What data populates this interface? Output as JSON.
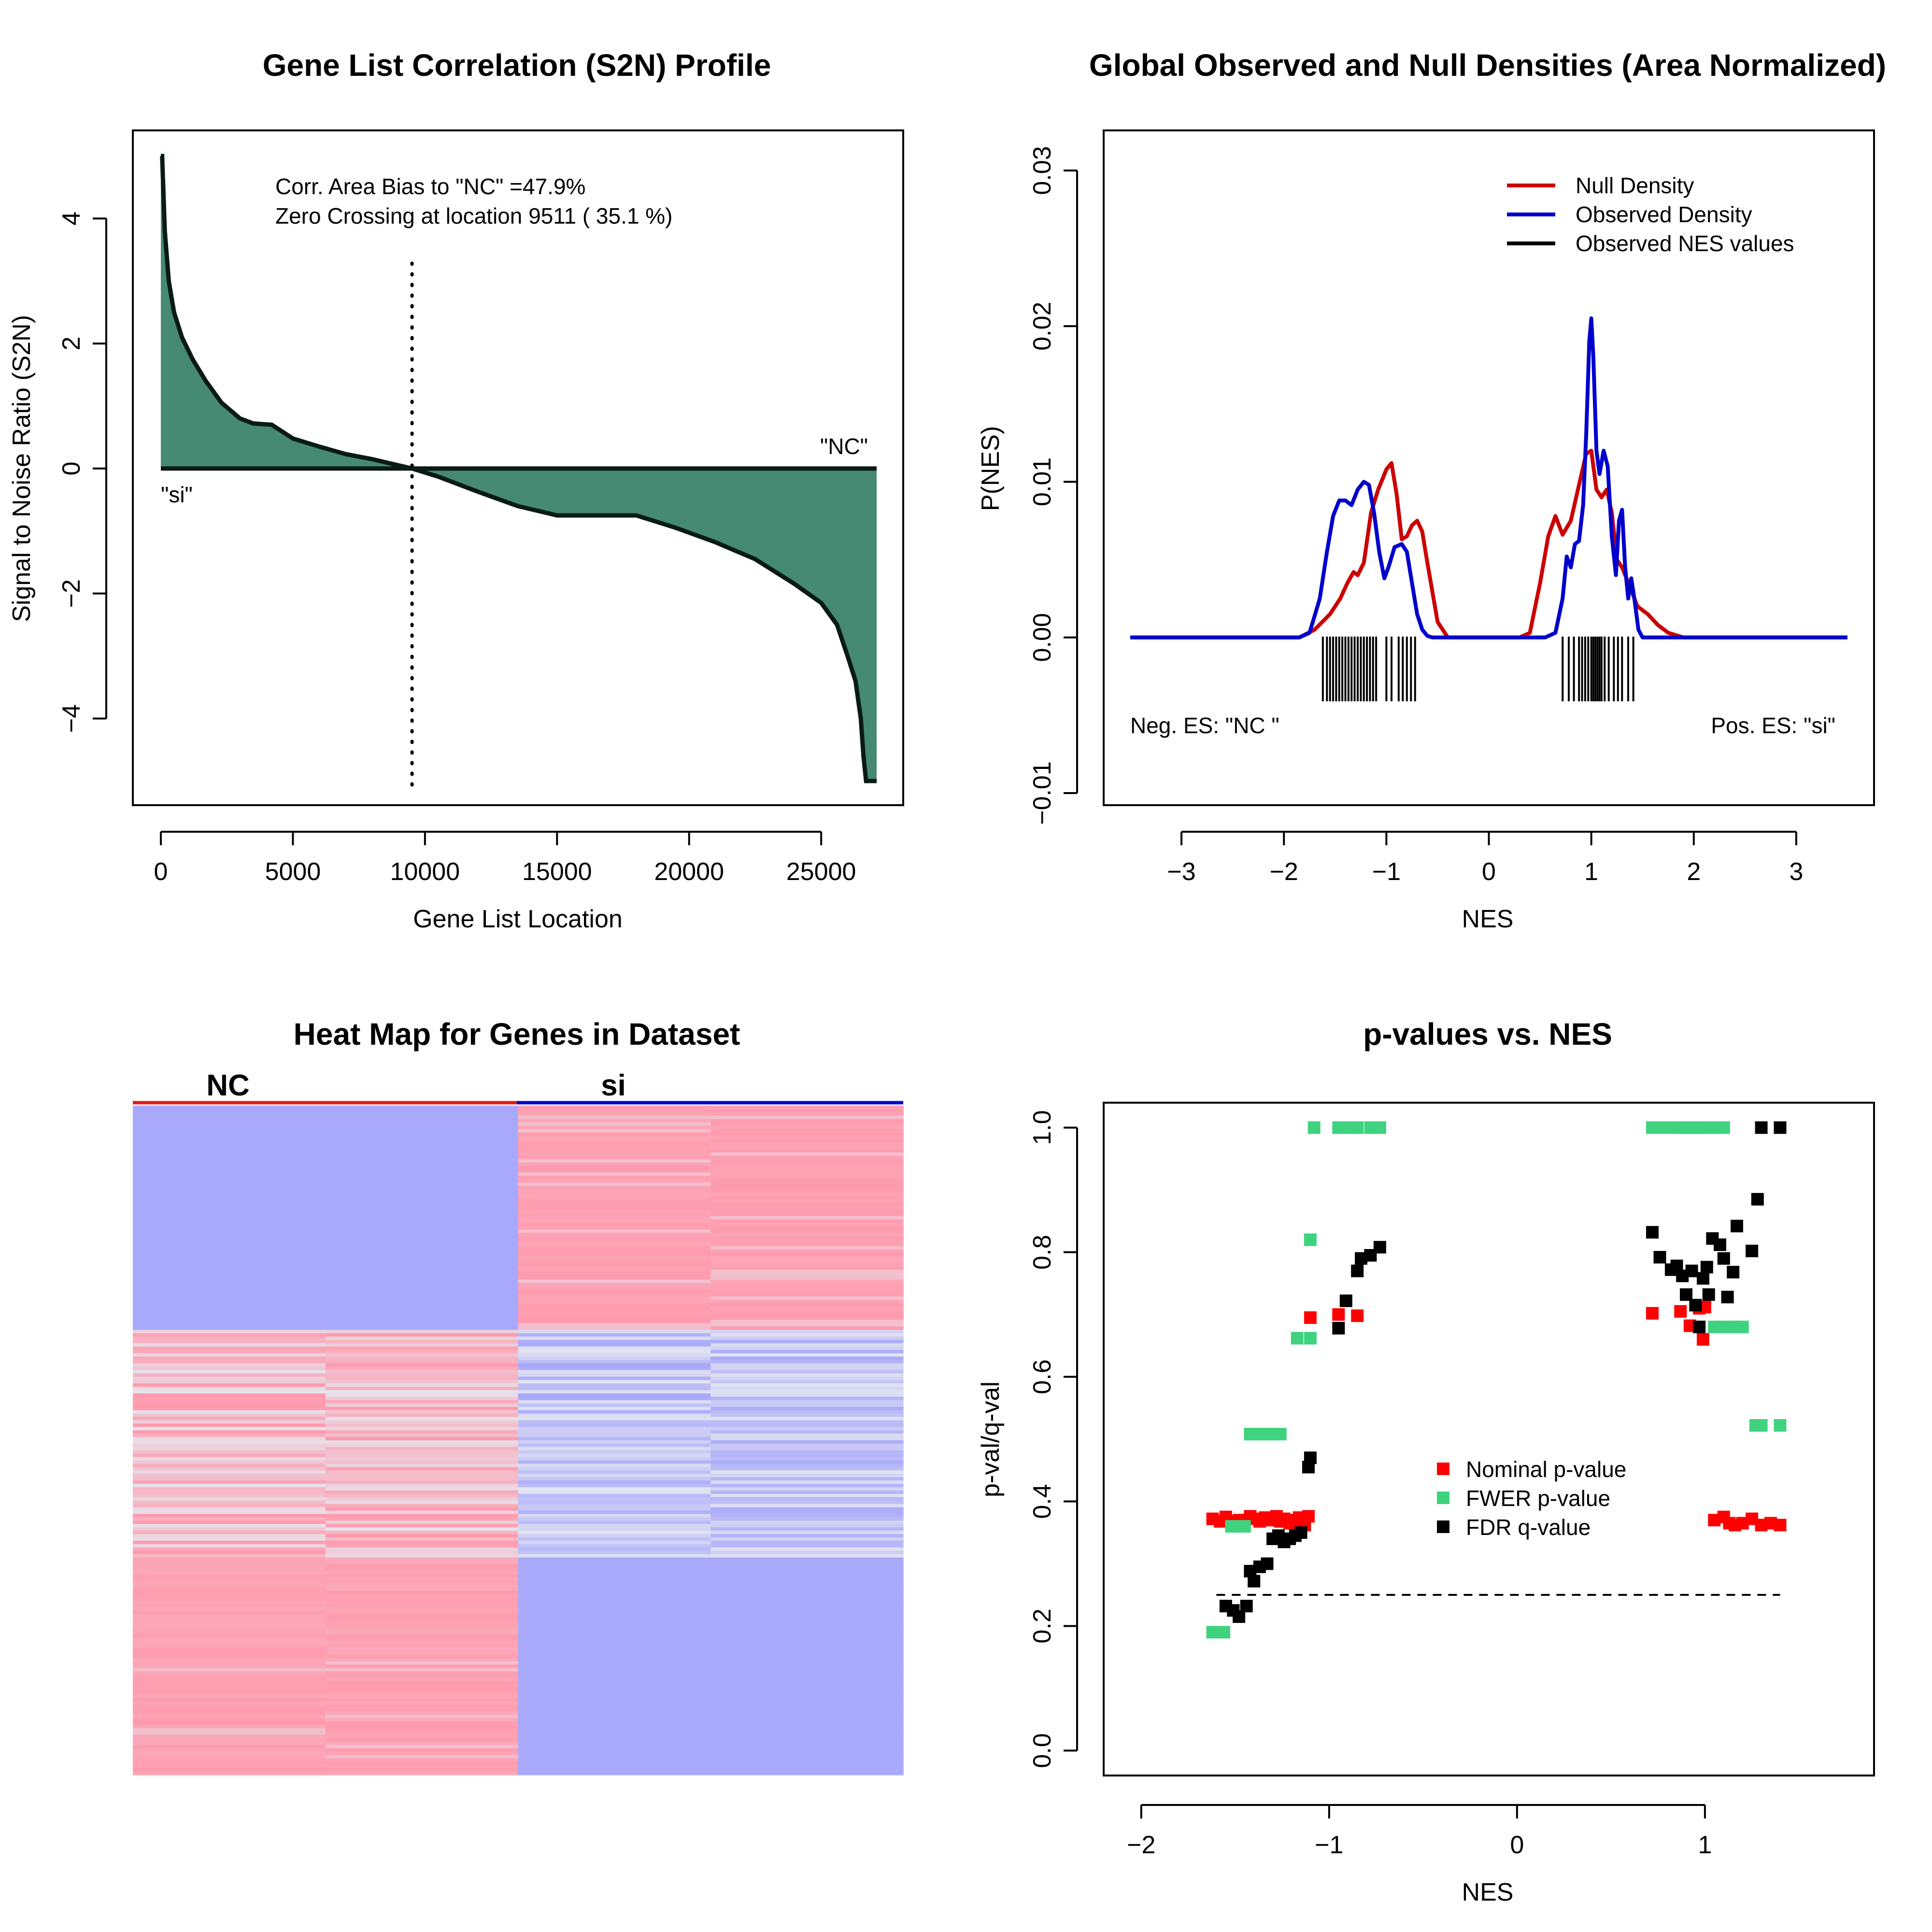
{
  "chart_data": [
    {
      "type": "area",
      "title": "Gene List Correlation (S2N) Profile",
      "xlabel": "Gene List Location",
      "ylabel": "Signal to Noise Ratio (S2N)",
      "xlim": [
        0,
        27100
      ],
      "ylim": [
        -5,
        5
      ],
      "xticks": [
        0,
        5000,
        10000,
        15000,
        20000,
        25000
      ],
      "xtick_labels": [
        "0",
        "5000",
        "10000",
        "15000",
        "20000",
        "25000"
      ],
      "yticks": [
        -4,
        -2,
        0,
        2,
        4
      ],
      "ytick_labels": [
        "−4",
        "−2",
        "0",
        "2",
        "4"
      ],
      "grid": false,
      "fill_color": "#468a73",
      "annotations": [
        "Corr. Area Bias to \"NC\" =47.9%",
        "Zero Crossing at location  9511  ( 35.1  %)"
      ],
      "left_label": "\"si\"",
      "right_label": "\"NC\"",
      "zero_crossing": 9511,
      "x": [
        0,
        50,
        150,
        300,
        500,
        800,
        1200,
        1700,
        2300,
        3000,
        3500,
        4200,
        5000,
        6000,
        7000,
        8000,
        9000,
        9511,
        10500,
        12000,
        13500,
        15000,
        16500,
        18000,
        19500,
        21000,
        22500,
        24000,
        25000,
        25600,
        26000,
        26300,
        26500,
        26600,
        26700,
        26800,
        27100
      ],
      "values": [
        5.0,
        5.0,
        3.8,
        3.0,
        2.5,
        2.1,
        1.75,
        1.4,
        1.05,
        0.8,
        0.72,
        0.7,
        0.48,
        0.35,
        0.23,
        0.15,
        0.05,
        0.0,
        -0.13,
        -0.37,
        -0.6,
        -0.75,
        -0.75,
        -0.75,
        -0.95,
        -1.18,
        -1.45,
        -1.85,
        -2.15,
        -2.5,
        -3.0,
        -3.4,
        -4.0,
        -4.6,
        -5.0,
        -5.0,
        -5.0
      ]
    },
    {
      "type": "line",
      "title": "Global Observed and Null Densities (Area Normalized)",
      "xlabel": "NES",
      "ylabel": "P(NES)",
      "xlim": [
        -3.5,
        3.5
      ],
      "ylim": [
        -0.01,
        0.03
      ],
      "xticks": [
        -3,
        -2,
        -1,
        0,
        1,
        2,
        3
      ],
      "xtick_labels": [
        "−3",
        "−2",
        "−1",
        "0",
        "1",
        "2",
        "3"
      ],
      "yticks": [
        -0.01,
        0.0,
        0.01,
        0.02,
        0.03
      ],
      "ytick_labels": [
        "−0.01",
        "0.00",
        "0.01",
        "0.02",
        "0.03"
      ],
      "grid": false,
      "legend_position": "top-right",
      "legend": [
        "Null Density",
        "Observed Density",
        "Observed NES values"
      ],
      "neg_label": "Neg. ES: \"NC \"",
      "pos_label": "Pos. ES: \"si\"",
      "series": [
        {
          "name": "Null Density",
          "color": "#cc0000",
          "x": [
            -3.5,
            -1.85,
            -1.7,
            -1.55,
            -1.45,
            -1.38,
            -1.32,
            -1.28,
            -1.22,
            -1.15,
            -1.08,
            -1.0,
            -0.95,
            -0.9,
            -0.85,
            -0.8,
            -0.75,
            -0.7,
            -0.65,
            -0.6,
            -0.5,
            -0.4,
            0.3,
            0.4,
            0.5,
            0.58,
            0.65,
            0.72,
            0.8,
            0.88,
            0.95,
            1.0,
            1.05,
            1.1,
            1.15,
            1.2,
            1.25,
            1.3,
            1.38,
            1.45,
            1.55,
            1.65,
            1.75,
            1.9,
            3.5
          ],
          "y": [
            0.0,
            0.0,
            0.0005,
            0.0015,
            0.0025,
            0.0035,
            0.0042,
            0.004,
            0.0048,
            0.008,
            0.0095,
            0.0108,
            0.0112,
            0.0092,
            0.0063,
            0.0065,
            0.0072,
            0.0075,
            0.0068,
            0.0048,
            0.001,
            0.0,
            0.0,
            0.0003,
            0.0035,
            0.0065,
            0.0078,
            0.0066,
            0.0075,
            0.0098,
            0.0118,
            0.012,
            0.0095,
            0.009,
            0.0095,
            0.008,
            0.005,
            0.0045,
            0.0032,
            0.002,
            0.0015,
            0.0008,
            0.0003,
            0.0,
            0.0
          ]
        },
        {
          "name": "Observed Density",
          "color": "#0000cc",
          "x": [
            -3.5,
            -1.85,
            -1.75,
            -1.65,
            -1.58,
            -1.52,
            -1.46,
            -1.4,
            -1.34,
            -1.28,
            -1.22,
            -1.17,
            -1.12,
            -1.07,
            -1.02,
            -0.98,
            -0.92,
            -0.85,
            -0.8,
            -0.75,
            -0.7,
            -0.65,
            -0.6,
            -0.55,
            -0.45,
            0.55,
            0.65,
            0.72,
            0.76,
            0.8,
            0.84,
            0.88,
            0.92,
            0.95,
            0.98,
            1.0,
            1.02,
            1.05,
            1.08,
            1.12,
            1.16,
            1.2,
            1.24,
            1.27,
            1.3,
            1.33,
            1.36,
            1.39,
            1.42,
            1.46,
            1.5,
            3.5
          ],
          "y": [
            0.0,
            0.0,
            0.0003,
            0.0025,
            0.0055,
            0.0078,
            0.0088,
            0.0088,
            0.0085,
            0.0095,
            0.01,
            0.0098,
            0.008,
            0.0055,
            0.0038,
            0.0045,
            0.0058,
            0.006,
            0.0055,
            0.0035,
            0.0015,
            0.0005,
            0.0001,
            0.0,
            0.0,
            0.0,
            0.0003,
            0.0025,
            0.0052,
            0.0045,
            0.006,
            0.0062,
            0.0085,
            0.013,
            0.019,
            0.0205,
            0.018,
            0.012,
            0.0105,
            0.012,
            0.011,
            0.0065,
            0.004,
            0.0075,
            0.0082,
            0.0045,
            0.0025,
            0.0038,
            0.0025,
            0.0005,
            0.0,
            0.0
          ]
        }
      ],
      "nes_ticks": [
        -1.62,
        -1.58,
        -1.55,
        -1.52,
        -1.49,
        -1.46,
        -1.43,
        -1.4,
        -1.37,
        -1.34,
        -1.31,
        -1.28,
        -1.25,
        -1.22,
        -1.19,
        -1.16,
        -1.13,
        -1.1,
        -1.0,
        -0.95,
        -0.88,
        -0.84,
        -0.8,
        -0.76,
        -0.72,
        0.72,
        0.78,
        0.83,
        0.88,
        0.91,
        0.94,
        0.97,
        1.0,
        1.02,
        1.04,
        1.06,
        1.08,
        1.1,
        1.13,
        1.17,
        1.22,
        1.26,
        1.3,
        1.36,
        1.41
      ]
    },
    {
      "type": "heatmap",
      "title": "Heat Map for Genes in Dataset",
      "column_groups": [
        "NC",
        "si"
      ],
      "columns": 4,
      "group_colors": [
        "#e31a1c",
        "#0000cc"
      ],
      "palette": {
        "high": "#ff9aad",
        "low": "#a8a9fb",
        "mid": "#e5e6ef"
      }
    },
    {
      "type": "scatter",
      "title": "p-values vs. NES",
      "xlabel": "NES",
      "ylabel": "p-val/q-val",
      "xlim": [
        -2.2,
        1.9
      ],
      "ylim": [
        -0.04,
        1.04
      ],
      "xticks": [
        -2,
        -1,
        0,
        1
      ],
      "xtick_labels": [
        "−2",
        "−1",
        "0",
        "1"
      ],
      "yticks": [
        0.0,
        0.2,
        0.4,
        0.6,
        0.8,
        1.0
      ],
      "ytick_labels": [
        "0.0",
        "0.2",
        "0.4",
        "0.6",
        "0.8",
        "1.0"
      ],
      "grid": false,
      "threshold": 0.25,
      "threshold_range": [
        -1.6,
        1.4
      ],
      "legend_position": "center-right",
      "series": [
        {
          "name": "Nominal p-value",
          "color": "#ff0000",
          "points": [
            [
              -1.62,
              0.372
            ],
            [
              -1.58,
              0.368
            ],
            [
              -1.55,
              0.375
            ],
            [
              -1.52,
              0.368
            ],
            [
              -1.48,
              0.37
            ],
            [
              -1.45,
              0.368
            ],
            [
              -1.42,
              0.376
            ],
            [
              -1.4,
              0.372
            ],
            [
              -1.37,
              0.368
            ],
            [
              -1.34,
              0.374
            ],
            [
              -1.31,
              0.37
            ],
            [
              -1.28,
              0.376
            ],
            [
              -1.26,
              0.368
            ],
            [
              -1.24,
              0.372
            ],
            [
              -1.21,
              0.365
            ],
            [
              -1.19,
              0.37
            ],
            [
              -1.16,
              0.374
            ],
            [
              -1.13,
              0.362
            ],
            [
              -1.11,
              0.376
            ],
            [
              -1.1,
              0.695
            ],
            [
              -0.95,
              0.7
            ],
            [
              -0.85,
              0.698
            ],
            [
              0.72,
              0.702
            ],
            [
              0.87,
              0.705
            ],
            [
              0.92,
              0.682
            ],
            [
              0.97,
              0.71
            ],
            [
              1.0,
              0.712
            ],
            [
              0.99,
              0.66
            ],
            [
              1.05,
              0.37
            ],
            [
              1.1,
              0.375
            ],
            [
              1.13,
              0.365
            ],
            [
              1.16,
              0.362
            ],
            [
              1.2,
              0.365
            ],
            [
              1.25,
              0.372
            ],
            [
              1.3,
              0.362
            ],
            [
              1.35,
              0.365
            ],
            [
              1.4,
              0.362
            ]
          ]
        },
        {
          "name": "FWER p-value",
          "color": "#3fd27f",
          "points": [
            [
              -1.62,
              0.19
            ],
            [
              -1.56,
              0.19
            ],
            [
              -1.52,
              0.36
            ],
            [
              -1.48,
              0.36
            ],
            [
              -1.45,
              0.36
            ],
            [
              -1.42,
              0.508
            ],
            [
              -1.38,
              0.508
            ],
            [
              -1.34,
              0.508
            ],
            [
              -1.3,
              0.508
            ],
            [
              -1.26,
              0.508
            ],
            [
              -1.17,
              0.662
            ],
            [
              -1.1,
              0.662
            ],
            [
              -1.1,
              0.82
            ],
            [
              -1.08,
              1.0
            ],
            [
              -0.95,
              1.0
            ],
            [
              -0.9,
              1.0
            ],
            [
              -0.85,
              1.0
            ],
            [
              -0.78,
              1.0
            ],
            [
              -0.73,
              1.0
            ],
            [
              0.72,
              1.0
            ],
            [
              0.78,
              1.0
            ],
            [
              0.84,
              1.0
            ],
            [
              0.88,
              1.0
            ],
            [
              0.92,
              1.0
            ],
            [
              0.96,
              1.0
            ],
            [
              1.0,
              1.0
            ],
            [
              1.05,
              1.0
            ],
            [
              1.1,
              1.0
            ],
            [
              1.05,
              0.68
            ],
            [
              1.1,
              0.68
            ],
            [
              1.15,
              0.68
            ],
            [
              1.2,
              0.68
            ],
            [
              1.27,
              0.522
            ],
            [
              1.3,
              0.522
            ],
            [
              1.4,
              0.522
            ]
          ]
        },
        {
          "name": "FDR q-value",
          "color": "#000000",
          "points": [
            [
              -1.55,
              0.232
            ],
            [
              -1.51,
              0.225
            ],
            [
              -1.48,
              0.215
            ],
            [
              -1.44,
              0.232
            ],
            [
              -1.42,
              0.288
            ],
            [
              -1.4,
              0.272
            ],
            [
              -1.37,
              0.295
            ],
            [
              -1.33,
              0.3
            ],
            [
              -1.3,
              0.34
            ],
            [
              -1.27,
              0.345
            ],
            [
              -1.24,
              0.335
            ],
            [
              -1.21,
              0.34
            ],
            [
              -1.18,
              0.345
            ],
            [
              -1.15,
              0.35
            ],
            [
              -1.11,
              0.455
            ],
            [
              -1.1,
              0.47
            ],
            [
              -0.95,
              0.678
            ],
            [
              -0.91,
              0.722
            ],
            [
              -0.85,
              0.77
            ],
            [
              -0.83,
              0.79
            ],
            [
              -0.78,
              0.795
            ],
            [
              -0.73,
              0.808
            ],
            [
              0.72,
              0.832
            ],
            [
              0.76,
              0.792
            ],
            [
              0.82,
              0.772
            ],
            [
              0.85,
              0.778
            ],
            [
              0.88,
              0.762
            ],
            [
              0.9,
              0.732
            ],
            [
              0.93,
              0.77
            ],
            [
              0.95,
              0.715
            ],
            [
              0.97,
              0.68
            ],
            [
              0.99,
              0.758
            ],
            [
              1.01,
              0.776
            ],
            [
              1.02,
              0.732
            ],
            [
              1.04,
              0.822
            ],
            [
              1.08,
              0.812
            ],
            [
              1.1,
              0.79
            ],
            [
              1.12,
              0.728
            ],
            [
              1.15,
              0.768
            ],
            [
              1.17,
              0.842
            ],
            [
              1.25,
              0.802
            ],
            [
              1.28,
              0.885
            ],
            [
              1.3,
              1.0
            ],
            [
              1.4,
              1.0
            ]
          ]
        }
      ]
    }
  ]
}
